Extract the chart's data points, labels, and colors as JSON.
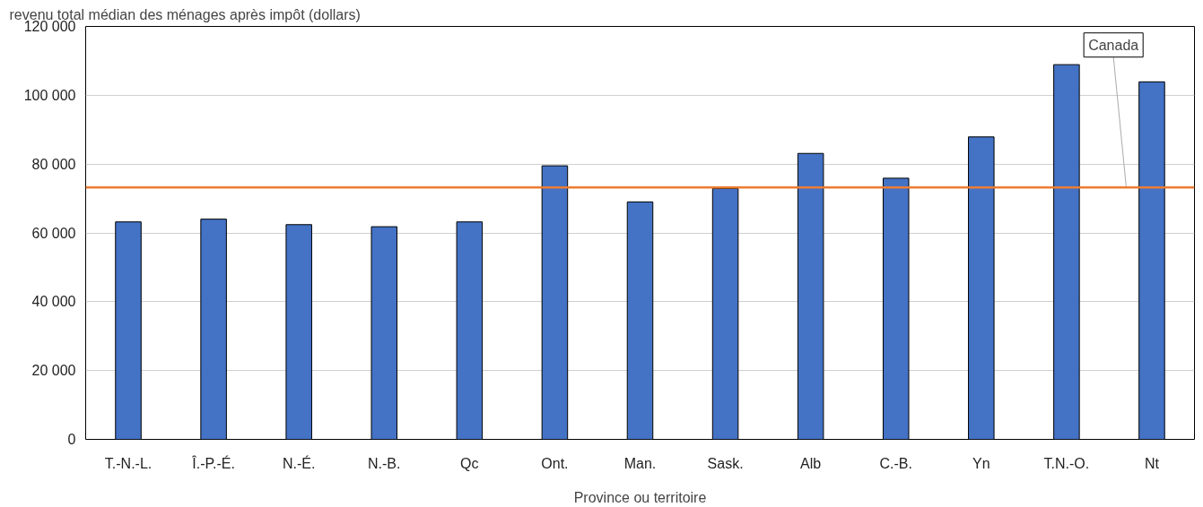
{
  "chart_data": {
    "type": "bar",
    "ylabel": "revenu total médian des ménages après impôt (dollars)",
    "xlabel": "Province ou territoire",
    "categories": [
      "T.-N.-L.",
      "Î.-P.-É.",
      "N.-É.",
      "N.-B.",
      "Qc",
      "Ont.",
      "Man.",
      "Sask.",
      "Alb",
      "C.-B.",
      "Yn",
      "T.N.-O.",
      "Nt"
    ],
    "values": [
      63200,
      64000,
      62400,
      61800,
      63200,
      79500,
      69000,
      72900,
      83100,
      75900,
      87900,
      108900,
      103900
    ],
    "color": "#4472c4",
    "ylim": [
      0,
      120000
    ],
    "yticks": [
      0,
      {
        "value": 20000,
        "label": "20 000"
      },
      {
        "value": 40000,
        "label": "40 000"
      },
      {
        "value": 60000,
        "label": "60 000"
      },
      {
        "value": 80000,
        "label": "80 000"
      },
      {
        "value": 100000,
        "label": "100 000"
      },
      {
        "value": 120000,
        "label": "120 000"
      }
    ],
    "grid": "y",
    "ref_lines": [
      {
        "axis": "y",
        "value": 73200,
        "label": "Canada",
        "color": "#ed7d31",
        "line_style": "solid"
      }
    ]
  }
}
